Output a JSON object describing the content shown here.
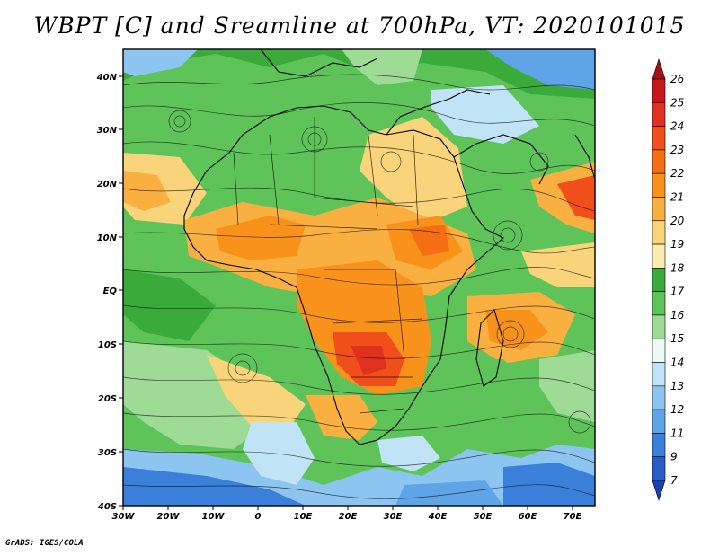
{
  "title": "WBPT [C] and Sreamline at 700hPa, VT: 2020101015",
  "credit": "GrADS: IGES/COLA",
  "map": {
    "field": "WBPT",
    "units": "C",
    "level": "700hPa",
    "valid_time": "2020101015",
    "lon_range": [
      -30,
      75
    ],
    "lat_range": [
      -40,
      45
    ]
  },
  "axes": {
    "lat_ticks": [
      "40N",
      "30N",
      "20N",
      "10N",
      "EQ",
      "10S",
      "20S",
      "30S",
      "40S"
    ],
    "lon_ticks": [
      "30W",
      "20W",
      "10W",
      "0",
      "10E",
      "20E",
      "30E",
      "40E",
      "50E",
      "60E",
      "70E"
    ]
  },
  "colorbar": {
    "labels": [
      "26",
      "25",
      "24",
      "23",
      "22",
      "21",
      "20",
      "19",
      "18",
      "17",
      "16",
      "15",
      "14",
      "13",
      "12",
      "11",
      "9",
      "7"
    ],
    "colors": [
      "#a50f15",
      "#c8181e",
      "#e0301e",
      "#f04e1a",
      "#f56e14",
      "#f8921a",
      "#f9b040",
      "#fad47a",
      "#fbecae",
      "#3aab3a",
      "#5ec45a",
      "#9edc96",
      "#ecfaf6",
      "#c0e4f6",
      "#8cc6f0",
      "#5ea4e6",
      "#3a80da",
      "#2a5cc6",
      "#1e3fb0"
    ]
  }
}
